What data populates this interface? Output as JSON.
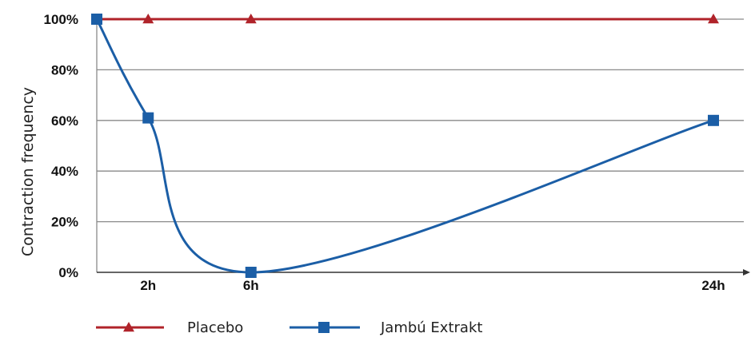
{
  "chart_data": {
    "type": "line",
    "title": "",
    "xlabel": "",
    "ylabel": "Contraction frequency",
    "y_unit": "%",
    "ylim": [
      0,
      100
    ],
    "xlim": [
      0,
      24
    ],
    "y_ticks": [
      0,
      20,
      40,
      60,
      80,
      100
    ],
    "y_tick_labels": [
      "0%",
      "20%",
      "40%",
      "60%",
      "80%",
      "100%"
    ],
    "x_ticks": [
      2,
      6,
      24
    ],
    "x_tick_labels": [
      "2h",
      "6h",
      "24h"
    ],
    "grid": "horizontal",
    "legend_position": "bottom",
    "series": [
      {
        "name": "Placebo",
        "color": "#b0232a",
        "marker": "triangle",
        "smooth": false,
        "x": [
          0,
          2,
          6,
          24
        ],
        "values": [
          100,
          100,
          100,
          100
        ]
      },
      {
        "name": "Jambú Extrakt",
        "color": "#1b5ea6",
        "marker": "square",
        "smooth": true,
        "x": [
          0,
          2,
          6,
          24
        ],
        "values": [
          100,
          61,
          0,
          60
        ]
      }
    ]
  }
}
